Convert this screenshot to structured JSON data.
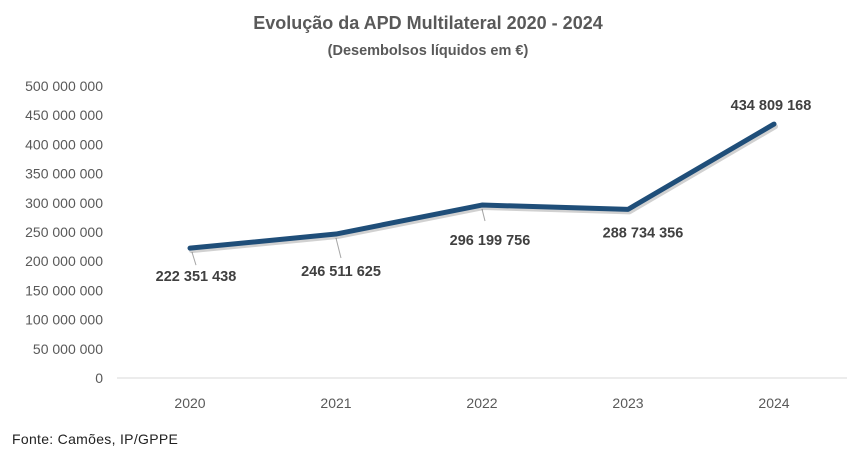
{
  "chart_data": {
    "type": "line",
    "title": "Evolução da APD Multilateral 2020 - 2024",
    "subtitle": "(Desembolsos líquidos em €)",
    "xlabel": "",
    "ylabel": "",
    "categories": [
      "2020",
      "2021",
      "2022",
      "2023",
      "2024"
    ],
    "values": [
      222351438,
      246511625,
      296199756,
      288734356,
      434809168
    ],
    "data_labels": [
      "222 351 438",
      "246 511 625",
      "296 199 756",
      "288 734 356",
      "434 809 168"
    ],
    "ylim": [
      0,
      500000000
    ],
    "yticks": [
      0,
      50000000,
      100000000,
      150000000,
      200000000,
      250000000,
      300000000,
      350000000,
      400000000,
      450000000,
      500000000
    ],
    "ytick_labels": [
      "0",
      "50 000 000",
      "100 000 000",
      "150 000 000",
      "200 000 000",
      "250 000 000",
      "300 000 000",
      "350 000 000",
      "400 000 000",
      "450 000 000",
      "500 000 000"
    ],
    "grid": false,
    "legend": "none",
    "line_color": "#1f4e79"
  },
  "source": "Fonte: Camões, IP/GPPE"
}
